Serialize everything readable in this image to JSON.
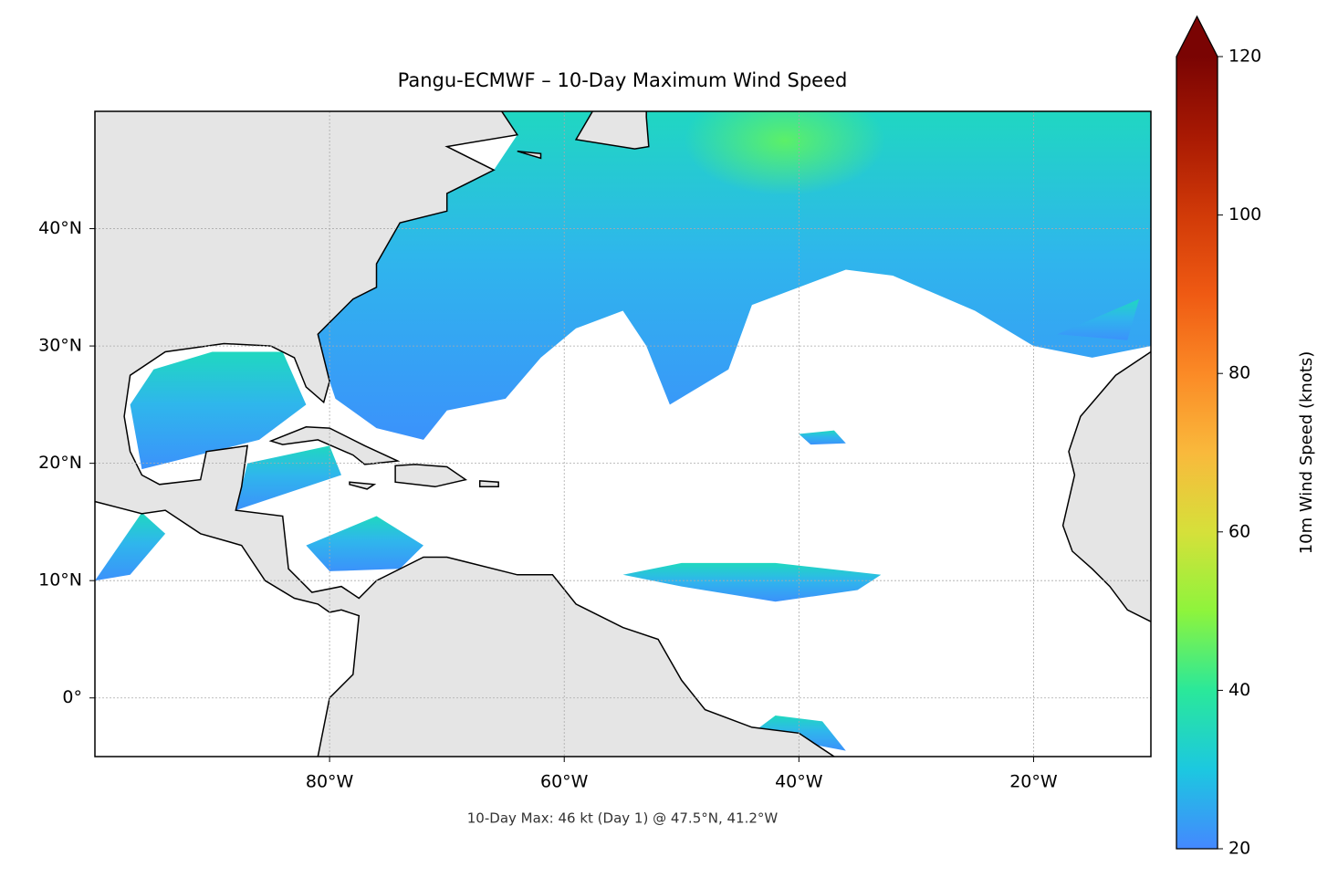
{
  "chart_data": {
    "type": "map",
    "title": "Pangu-ECMWF – 10-Day Maximum Wind Speed",
    "annotation": "10-Day Max: 46 kt (Day 1) @ 47.5°N, 41.2°W",
    "xlim": [
      -100,
      -10
    ],
    "ylim": [
      -5,
      50
    ],
    "xticks": [
      {
        "value": -80,
        "label": "80°W"
      },
      {
        "value": -60,
        "label": "60°W"
      },
      {
        "value": -40,
        "label": "40°W"
      },
      {
        "value": -20,
        "label": "20°W"
      }
    ],
    "yticks": [
      {
        "value": 0,
        "label": "0°"
      },
      {
        "value": 10,
        "label": "10°N"
      },
      {
        "value": 20,
        "label": "20°N"
      },
      {
        "value": 30,
        "label": "30°N"
      },
      {
        "value": 40,
        "label": "40°N"
      }
    ],
    "grid": true,
    "colorbar": {
      "label": "10m Wind Speed (knots)",
      "lim": [
        20,
        120
      ],
      "ticks": [
        20,
        40,
        60,
        80,
        100,
        120
      ],
      "extend": "max"
    }
  }
}
